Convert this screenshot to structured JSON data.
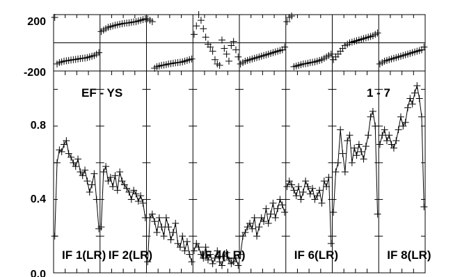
{
  "chart_data": {
    "type": "scatter",
    "title_left": "EF - YS",
    "title_right": "1 - 7",
    "phase": {
      "ylim": [
        -200,
        200
      ],
      "ticks": [
        "200",
        "-200"
      ],
      "series": [
        {
          "panel": 1,
          "values": [
            180,
            -150,
            -140,
            -135,
            -130,
            -128,
            -125,
            -122,
            -120,
            -118,
            -115,
            -112,
            -110,
            -108,
            -105,
            -100,
            -95,
            -90,
            -80,
            -70
          ]
        },
        {
          "panel": 2,
          "values": [
            80,
            90,
            100,
            110,
            115,
            120,
            125,
            128,
            132,
            135,
            138,
            140,
            142,
            145,
            148,
            150,
            155,
            160,
            165,
            170
          ]
        },
        {
          "panel": 3,
          "values": [
            170,
            160,
            150,
            -180,
            -170,
            -165,
            -160,
            -158,
            -155,
            -150,
            -148,
            -145,
            -142,
            -140,
            -138,
            -135,
            -130,
            -125,
            -120,
            -115
          ]
        },
        {
          "panel": 4,
          "values": [
            60,
            120,
            200,
            160,
            100,
            40,
            -10,
            -30,
            -60,
            -120,
            -150,
            -160,
            20,
            -40,
            -80,
            -130,
            -20,
            10,
            -50,
            -100
          ]
        },
        {
          "panel": 5,
          "values": [
            -150,
            -140,
            -130,
            -125,
            -120,
            -115,
            -110,
            -105,
            -100,
            -95,
            -90,
            -85,
            -80,
            -75,
            -70,
            -65,
            -60,
            -55,
            -50,
            -30
          ]
        },
        {
          "panel": 6,
          "values": [
            150,
            180,
            190,
            -170,
            -165,
            -160,
            -155,
            -150,
            -148,
            -145,
            -140,
            -138,
            -135,
            -130,
            -125,
            -120,
            -110,
            -100,
            -90,
            -80
          ]
        },
        {
          "panel": 7,
          "values": [
            -120,
            -100,
            -80,
            -60,
            -40,
            -20,
            -10,
            0,
            5,
            10,
            15,
            20,
            25,
            30,
            35,
            40,
            45,
            50,
            60,
            70
          ]
        },
        {
          "panel": 8,
          "values": [
            -150,
            -140,
            -130,
            -125,
            -120,
            -115,
            -110,
            -105,
            -100,
            -95,
            -90,
            -85,
            -80,
            -75,
            -70,
            -65,
            -60,
            -55,
            -50,
            -30
          ]
        }
      ]
    },
    "amplitude": {
      "ylim": [
        0.0,
        1.1
      ],
      "ticks": [
        "0.0",
        "0.4",
        "0.8"
      ],
      "panels": [
        {
          "label": "IF 1(LR)",
          "values": [
            0.2,
            0.6,
            0.67,
            0.66,
            0.7,
            0.72,
            0.65,
            0.63,
            0.6,
            0.58,
            0.62,
            0.55,
            0.53,
            0.56,
            0.5,
            0.44,
            0.48,
            0.54,
            0.4,
            0.24
          ]
        },
        {
          "label": "IF 2(LR)",
          "values": [
            0.25,
            0.55,
            0.58,
            0.5,
            0.52,
            0.47,
            0.53,
            0.45,
            0.55,
            0.5,
            0.48,
            0.46,
            0.44,
            0.4,
            0.45,
            0.43,
            0.39,
            0.42,
            0.38,
            0.3
          ]
        },
        {
          "label": "",
          "values": [
            0.06,
            0.3,
            0.32,
            0.28,
            0.22,
            0.3,
            0.25,
            0.2,
            0.3,
            0.25,
            0.18,
            0.22,
            0.27,
            0.16,
            0.14,
            0.2,
            0.12,
            0.17,
            0.1,
            0.06
          ]
        },
        {
          "label": "IF 4(LR)",
          "values": [
            0.12,
            0.16,
            0.14,
            0.1,
            0.08,
            0.14,
            0.07,
            0.1,
            0.05,
            0.08,
            0.12,
            0.06,
            0.04,
            0.09,
            0.11,
            0.07,
            0.05,
            0.06,
            0.08,
            0.04
          ]
        },
        {
          "label": "",
          "values": [
            0.1,
            0.2,
            0.22,
            0.25,
            0.27,
            0.24,
            0.3,
            0.2,
            0.25,
            0.3,
            0.28,
            0.35,
            0.27,
            0.32,
            0.38,
            0.3,
            0.35,
            0.4,
            0.37,
            0.33
          ]
        },
        {
          "label": "IF 6(LR)",
          "values": [
            0.47,
            0.5,
            0.48,
            0.45,
            0.42,
            0.47,
            0.4,
            0.44,
            0.5,
            0.47,
            0.43,
            0.46,
            0.4,
            0.42,
            0.45,
            0.38,
            0.5,
            0.47,
            0.52,
            0.16
          ]
        },
        {
          "label": "",
          "values": [
            0.33,
            0.55,
            0.6,
            0.78,
            0.65,
            0.55,
            0.72,
            0.75,
            0.6,
            0.68,
            0.64,
            0.7,
            0.66,
            0.62,
            0.69,
            0.75,
            0.85,
            0.88,
            0.8,
            0.32
          ]
        },
        {
          "label": "IF 8(LR)",
          "values": [
            0.7,
            0.75,
            0.78,
            0.72,
            0.75,
            0.7,
            0.68,
            0.72,
            0.78,
            0.85,
            0.8,
            0.82,
            0.9,
            0.95,
            0.92,
            0.98,
            1.02,
            0.95,
            0.85,
            0.36
          ]
        }
      ]
    }
  }
}
